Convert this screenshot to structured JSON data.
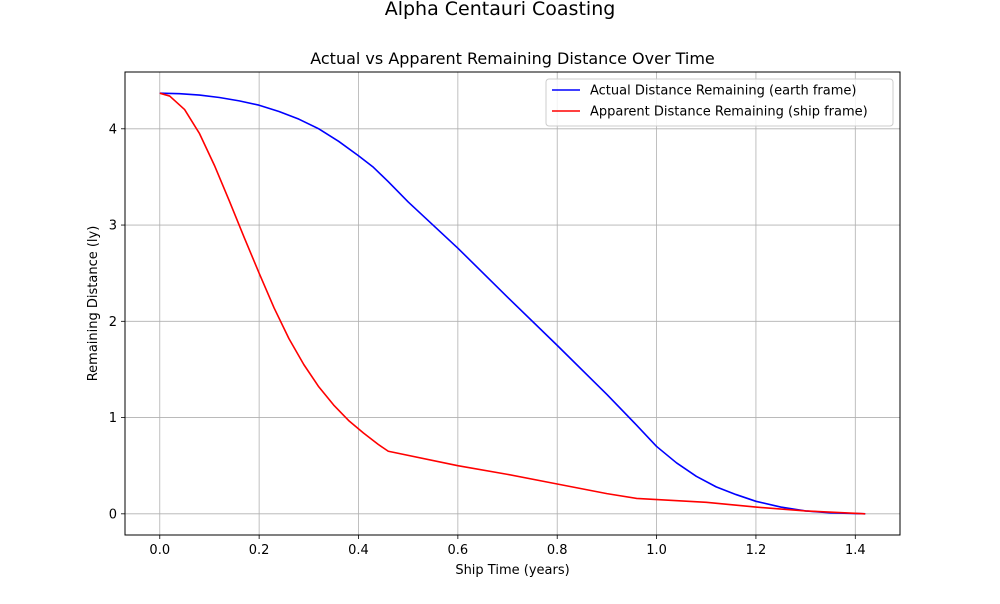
{
  "figure": {
    "suptitle": "Alpha Centauri Coasting"
  },
  "chart_data": {
    "type": "line",
    "title": "Actual vs Apparent Remaining Distance Over Time",
    "xlabel": "Ship Time (years)",
    "ylabel": "Remaining Distance (ly)",
    "xlim": [
      -0.07,
      1.49
    ],
    "ylim": [
      -0.22,
      4.59
    ],
    "xticks": [
      0.0,
      0.2,
      0.4,
      0.6,
      0.8,
      1.0,
      1.2,
      1.4
    ],
    "xtick_labels": [
      "0.0",
      "0.2",
      "0.4",
      "0.6",
      "0.8",
      "1.0",
      "1.2",
      "1.4"
    ],
    "yticks": [
      0,
      1,
      2,
      3,
      4
    ],
    "ytick_labels": [
      "0",
      "1",
      "2",
      "3",
      "4"
    ],
    "grid": true,
    "legend_position": "upper right",
    "series": [
      {
        "name": "Actual Distance Remaining (earth frame)",
        "color": "#0000ff",
        "x": [
          0.0,
          0.04,
          0.08,
          0.12,
          0.16,
          0.2,
          0.24,
          0.28,
          0.32,
          0.36,
          0.4,
          0.43,
          0.46,
          0.5,
          0.6,
          0.7,
          0.8,
          0.9,
          0.96,
          1.0,
          1.04,
          1.08,
          1.12,
          1.16,
          1.2,
          1.25,
          1.3,
          1.35,
          1.42
        ],
        "y": [
          4.37,
          4.365,
          4.35,
          4.325,
          4.29,
          4.245,
          4.18,
          4.1,
          4.0,
          3.87,
          3.72,
          3.6,
          3.45,
          3.24,
          2.76,
          2.25,
          1.75,
          1.24,
          0.92,
          0.7,
          0.53,
          0.39,
          0.28,
          0.2,
          0.13,
          0.07,
          0.03,
          0.01,
          0.0
        ]
      },
      {
        "name": "Apparent Distance Remaining (ship frame)",
        "color": "#ff0000",
        "x": [
          0.0,
          0.02,
          0.05,
          0.08,
          0.11,
          0.14,
          0.17,
          0.2,
          0.23,
          0.26,
          0.29,
          0.32,
          0.35,
          0.38,
          0.41,
          0.44,
          0.46,
          0.6,
          0.7,
          0.8,
          0.9,
          0.96,
          1.1,
          1.2,
          1.3,
          1.42
        ],
        "y": [
          4.37,
          4.34,
          4.2,
          3.95,
          3.62,
          3.25,
          2.87,
          2.5,
          2.14,
          1.82,
          1.55,
          1.32,
          1.13,
          0.97,
          0.84,
          0.72,
          0.65,
          0.5,
          0.41,
          0.31,
          0.21,
          0.16,
          0.12,
          0.07,
          0.03,
          0.0
        ]
      }
    ]
  }
}
